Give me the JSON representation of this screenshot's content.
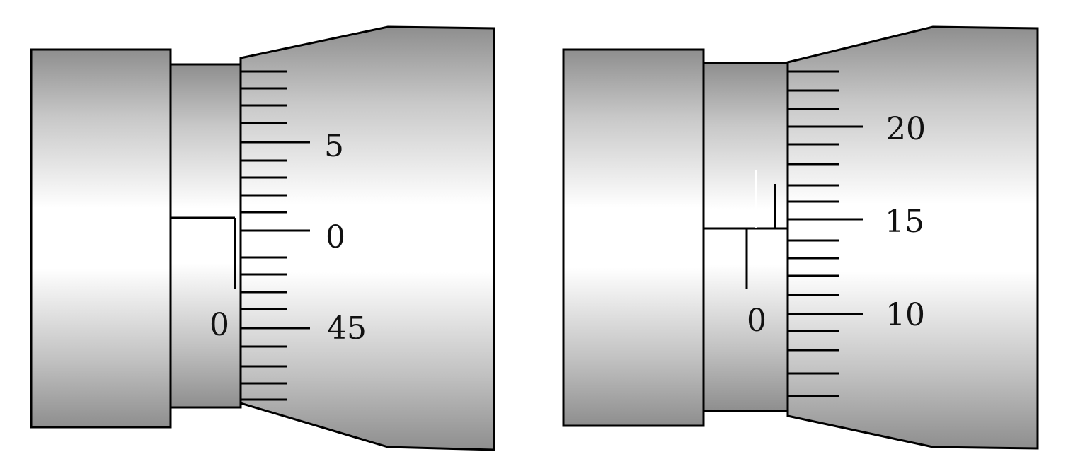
{
  "micrometers": [
    {
      "sleeve_zero_label": "0",
      "thimble_labels": [
        "5",
        "0",
        "45"
      ]
    },
    {
      "sleeve_zero_label": "0",
      "thimble_labels": [
        "20",
        "15",
        "10"
      ]
    }
  ],
  "colors": {
    "metal_dark": "#8f8f8f",
    "metal_light": "#ffffff",
    "outline": "#000000"
  }
}
